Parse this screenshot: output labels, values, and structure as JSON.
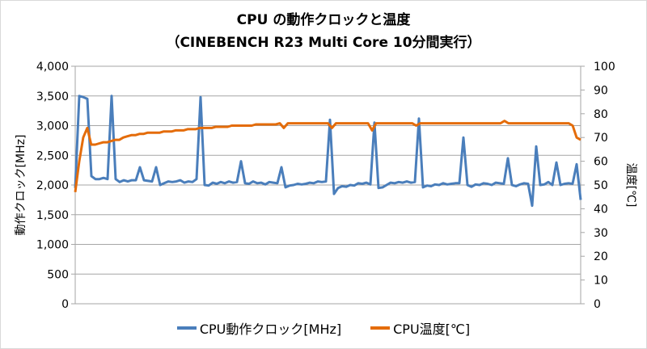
{
  "chart_data": {
    "type": "line",
    "title": "CPU の動作クロックと温度",
    "subtitle": "（CINEBENCH R23 Multi Core 10分間実行）",
    "ylabel": "動作クロック[MHz]",
    "y2label": "温度[℃]",
    "ylim": [
      0,
      4000
    ],
    "y2lim": [
      0,
      100
    ],
    "yticks": [
      "0",
      "500",
      "1,000",
      "1,500",
      "2,000",
      "2,500",
      "3,000",
      "3,500",
      "4,000"
    ],
    "y2ticks": [
      "0",
      "10",
      "20",
      "30",
      "40",
      "50",
      "60",
      "70",
      "80",
      "90",
      "100"
    ],
    "grid": true,
    "legend_position": "bottom",
    "series": [
      {
        "name": "CPU動作クロック[MHz]",
        "axis": "left",
        "color": "#4a7ebb",
        "values": [
          1950,
          3500,
          3480,
          3450,
          2150,
          2100,
          2100,
          2120,
          2100,
          3500,
          2100,
          2050,
          2080,
          2060,
          2080,
          2080,
          2300,
          2080,
          2070,
          2060,
          2300,
          2000,
          2030,
          2060,
          2050,
          2060,
          2080,
          2040,
          2060,
          2050,
          2100,
          3480,
          2000,
          1990,
          2040,
          2020,
          2050,
          2030,
          2060,
          2040,
          2050,
          2400,
          2030,
          2020,
          2060,
          2030,
          2040,
          2010,
          2050,
          2040,
          2030,
          2300,
          1960,
          1990,
          2000,
          2020,
          2010,
          2020,
          2040,
          2030,
          2060,
          2050,
          2060,
          3100,
          1850,
          1950,
          1980,
          1970,
          2000,
          1990,
          2030,
          2020,
          2040,
          2010,
          3050,
          1950,
          1960,
          2000,
          2040,
          2030,
          2050,
          2040,
          2060,
          2040,
          2050,
          3120,
          1960,
          1990,
          1980,
          2010,
          2000,
          2030,
          2010,
          2020,
          2030,
          2030,
          2800,
          2000,
          1970,
          2010,
          2000,
          2030,
          2020,
          2000,
          2040,
          2030,
          2020,
          2450,
          2000,
          1980,
          2010,
          2030,
          2020,
          1650,
          2650,
          2000,
          2010,
          2050,
          2000,
          2380,
          2000,
          2020,
          2030,
          2020,
          2350,
          1750
        ]
      },
      {
        "name": "CPU温度[℃]",
        "axis": "right",
        "color": "#e46c0a",
        "values": [
          47,
          60,
          70,
          74,
          67,
          67,
          67.5,
          68,
          68,
          68.5,
          69,
          69,
          70,
          70.5,
          71,
          71,
          71.5,
          71.5,
          72,
          72,
          72,
          72,
          72.5,
          72.5,
          72.5,
          73,
          73,
          73,
          73.5,
          73.5,
          73.5,
          74,
          74,
          74,
          74,
          74.5,
          74.5,
          74.5,
          74.5,
          75,
          75,
          75,
          75,
          75,
          75,
          75.5,
          75.5,
          75.5,
          75.5,
          75.5,
          75.5,
          76,
          74,
          76,
          76,
          76,
          76,
          76,
          76,
          76,
          76,
          76,
          76,
          76,
          74,
          76,
          76,
          76,
          76,
          76,
          76,
          76,
          76,
          76,
          73,
          76,
          76,
          76,
          76,
          76,
          76,
          76,
          76,
          76,
          76,
          75,
          76,
          76,
          76,
          76,
          76,
          76,
          76,
          76,
          76,
          76,
          76,
          76,
          76,
          76,
          76,
          76,
          76,
          76,
          76,
          76,
          76,
          77,
          76,
          76,
          76,
          76,
          76,
          76,
          76,
          76,
          76,
          76,
          76,
          76,
          76,
          76,
          76,
          76,
          75,
          70,
          69
        ]
      }
    ]
  }
}
